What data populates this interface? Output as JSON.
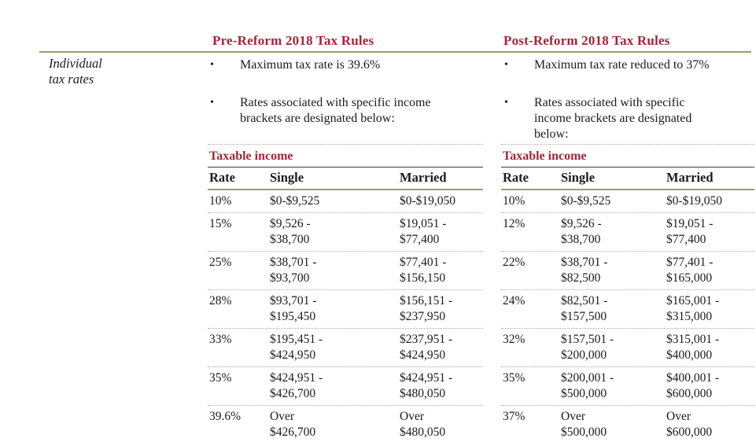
{
  "accent": {
    "red": "#A32638",
    "olive_rule": "#9C9B77",
    "dotted_line": "#A8A89E"
  },
  "row_label": "Individual\ntax rates",
  "columns": {
    "pre": {
      "title": "Pre-Reform 2018 Tax Rules",
      "bullets": [
        "Maximum tax rate is 39.6%",
        "Rates associated with specific income\nbrackets are designated below:"
      ],
      "table": {
        "title": "Taxable income",
        "headers": [
          "Rate",
          "Single",
          "Married"
        ],
        "rows": [
          {
            "rate": "10%",
            "single": "$0-$9,525",
            "married": "$0-$19,050"
          },
          {
            "rate": "15%",
            "single": "$9,526 -\n$38,700",
            "married": "$19,051 -\n$77,400"
          },
          {
            "rate": "25%",
            "single": "$38,701 -\n$93,700",
            "married": "$77,401 -\n$156,150"
          },
          {
            "rate": "28%",
            "single": "$93,701 -\n$195,450",
            "married": "$156,151 -\n$237,950"
          },
          {
            "rate": "33%",
            "single": "$195,451 -\n$424,950",
            "married": "$237,951 -\n$424,950"
          },
          {
            "rate": "35%",
            "single": "$424,951 -\n$426,700",
            "married": "$424,951 -\n$480,050"
          },
          {
            "rate": "39.6%",
            "single": "Over\n$426,700",
            "married": "Over\n$480,050"
          }
        ]
      }
    },
    "post": {
      "title": "Post-Reform 2018 Tax Rules",
      "bullets": [
        "Maximum tax rate reduced to 37%",
        "Rates associated with specific\nincome brackets are designated\nbelow:"
      ],
      "table": {
        "title": "Taxable income",
        "headers": [
          "Rate",
          "Single",
          "Married"
        ],
        "rows": [
          {
            "rate": "10%",
            "single": "$0-$9,525",
            "married": "$0-$19,050"
          },
          {
            "rate": "12%",
            "single": "$9,526 -\n$38,700",
            "married": "$19,051 -\n$77,400"
          },
          {
            "rate": "22%",
            "single": "$38,701 -\n$82,500",
            "married": "$77,401 -\n$165,000"
          },
          {
            "rate": "24%",
            "single": "$82,501 -\n$157,500",
            "married": "$165,001 -\n$315,000"
          },
          {
            "rate": "32%",
            "single": "$157,501 -\n$200,000",
            "married": "$315,001 -\n$400,000"
          },
          {
            "rate": "35%",
            "single": "$200,001 -\n$500,000",
            "married": "$400,001 -\n$600,000"
          },
          {
            "rate": "37%",
            "single": "Over\n$500,000",
            "married": "Over\n$600,000"
          }
        ]
      }
    }
  }
}
